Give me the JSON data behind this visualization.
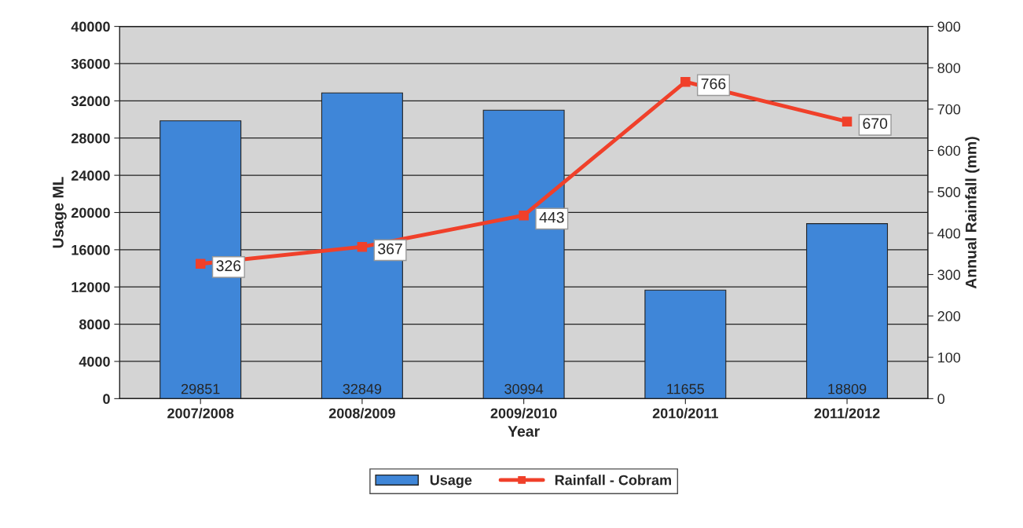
{
  "chart_data": {
    "type": "bar",
    "xlabel": "Year",
    "ylabel": "Usage ML",
    "y2label": "Annual Rainfall (mm)",
    "categories": [
      "2007/2008",
      "2008/2009",
      "2009/2010",
      "2010/2011",
      "2011/2012"
    ],
    "series": [
      {
        "name": "Usage",
        "color": "#3f86d8",
        "values": [
          29851,
          32849,
          30994,
          11655,
          18809
        ]
      },
      {
        "name": "Rainfall - Cobram",
        "type": "line",
        "axis": "y2",
        "color": "#f0402a",
        "marker": "square",
        "values": [
          326,
          367,
          443,
          766,
          670
        ]
      }
    ],
    "ylim": [
      0,
      40000
    ],
    "yticks": [
      0,
      4000,
      8000,
      12000,
      16000,
      20000,
      24000,
      28000,
      32000,
      36000,
      40000
    ],
    "y2lim": [
      0,
      900
    ],
    "y2ticks": [
      0,
      100,
      200,
      300,
      400,
      500,
      600,
      700,
      800,
      900
    ],
    "grid": "y",
    "legend": "bottom",
    "data_labels": true
  }
}
